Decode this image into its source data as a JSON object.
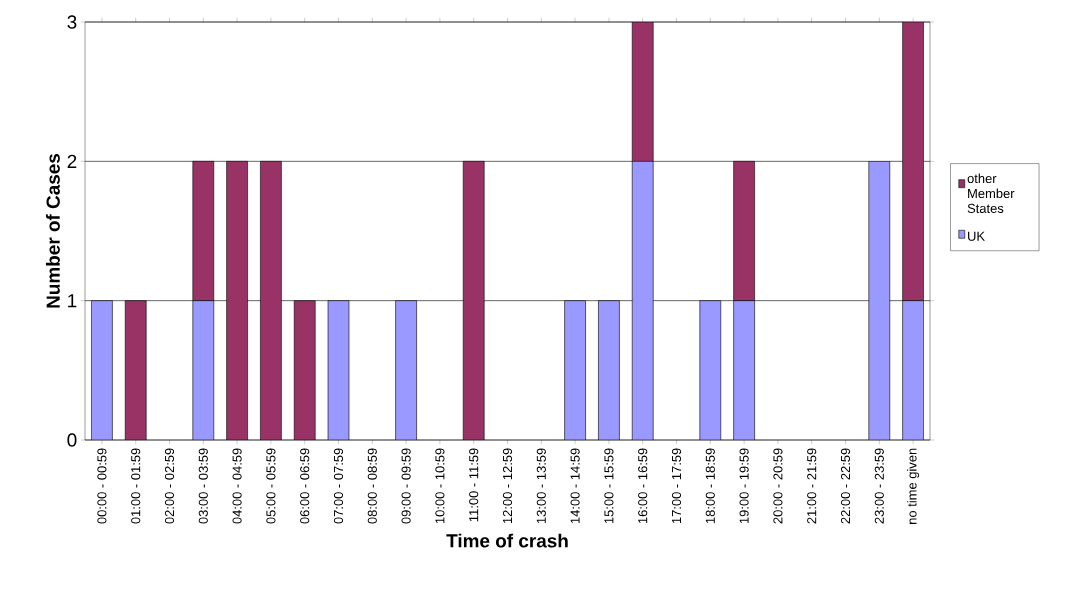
{
  "chart_data": {
    "type": "bar",
    "stacked": true,
    "xlabel": "Time of crash",
    "ylabel": "Number of Cases",
    "categories": [
      "00:00 - 00:59",
      "01:00 - 01:59",
      "02:00 - 02:59",
      "03:00 - 03:59",
      "04:00 - 04:59",
      "05:00 - 05:59",
      "06:00 - 06:59",
      "07:00 - 07:59",
      "08:00 - 08:59",
      "09:00 - 09:59",
      "10:00 - 10:59",
      "11:00 - 11:59",
      "12:00 - 12:59",
      "13:00 - 13:59",
      "14:00 - 14:59",
      "15:00 - 15:59",
      "16:00 - 16:59",
      "17:00 - 17:59",
      "18:00 - 18:59",
      "19:00 - 19:59",
      "20:00 - 20:59",
      "21:00 - 21:59",
      "22:00 - 22:59",
      "23:00 - 23:59",
      "no time given"
    ],
    "series": [
      {
        "name": "UK",
        "color": "#9999ff",
        "values": [
          1,
          0,
          0,
          1,
          0,
          0,
          0,
          1,
          0,
          1,
          0,
          0,
          0,
          0,
          1,
          1,
          2,
          0,
          1,
          1,
          0,
          0,
          0,
          2,
          1
        ]
      },
      {
        "name": "other Member States",
        "color": "#993366",
        "values": [
          0,
          1,
          0,
          1,
          2,
          2,
          1,
          0,
          0,
          0,
          0,
          2,
          0,
          0,
          0,
          0,
          1,
          0,
          0,
          1,
          0,
          0,
          0,
          0,
          2
        ]
      }
    ],
    "ylim": [
      0,
      3
    ],
    "yticks": [
      0,
      1,
      2,
      3
    ],
    "grid": "y",
    "legend": "right"
  }
}
